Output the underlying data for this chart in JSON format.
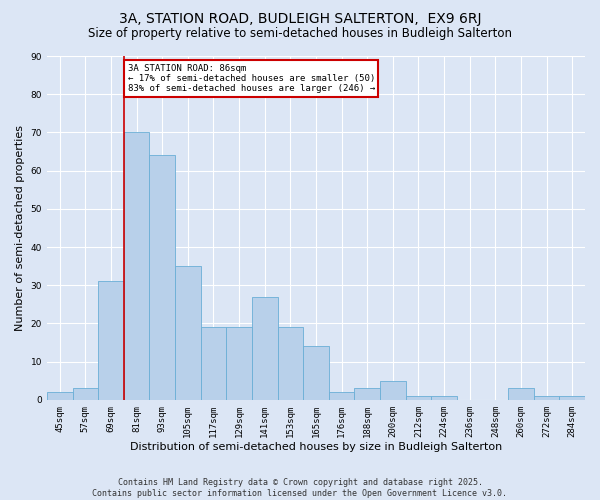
{
  "title1": "3A, STATION ROAD, BUDLEIGH SALTERTON,  EX9 6RJ",
  "title2": "Size of property relative to semi-detached houses in Budleigh Salterton",
  "xlabel": "Distribution of semi-detached houses by size in Budleigh Salterton",
  "ylabel": "Number of semi-detached properties",
  "categories": [
    "45sqm",
    "57sqm",
    "69sqm",
    "81sqm",
    "93sqm",
    "105sqm",
    "117sqm",
    "129sqm",
    "141sqm",
    "153sqm",
    "165sqm",
    "176sqm",
    "188sqm",
    "200sqm",
    "212sqm",
    "224sqm",
    "236sqm",
    "248sqm",
    "260sqm",
    "272sqm",
    "284sqm"
  ],
  "values": [
    2,
    3,
    31,
    70,
    64,
    35,
    19,
    19,
    27,
    19,
    14,
    2,
    3,
    5,
    1,
    1,
    0,
    0,
    3,
    1,
    1
  ],
  "bar_color": "#b8d0ea",
  "bar_edge_color": "#6aaed6",
  "vline_index": 3,
  "annotation_text": "3A STATION ROAD: 86sqm\n← 17% of semi-detached houses are smaller (50)\n83% of semi-detached houses are larger (246) →",
  "annotation_box_color": "#ffffff",
  "annotation_box_edge": "#cc0000",
  "vline_color": "#cc0000",
  "bg_color": "#dce6f5",
  "plot_bg_color": "#dce6f5",
  "grid_color": "#ffffff",
  "ylim": [
    0,
    90
  ],
  "yticks": [
    0,
    10,
    20,
    30,
    40,
    50,
    60,
    70,
    80,
    90
  ],
  "footer1": "Contains HM Land Registry data © Crown copyright and database right 2025.",
  "footer2": "Contains public sector information licensed under the Open Government Licence v3.0.",
  "title1_fontsize": 10,
  "title2_fontsize": 8.5,
  "tick_fontsize": 6.5,
  "ylabel_fontsize": 8,
  "xlabel_fontsize": 8,
  "footer_fontsize": 6
}
